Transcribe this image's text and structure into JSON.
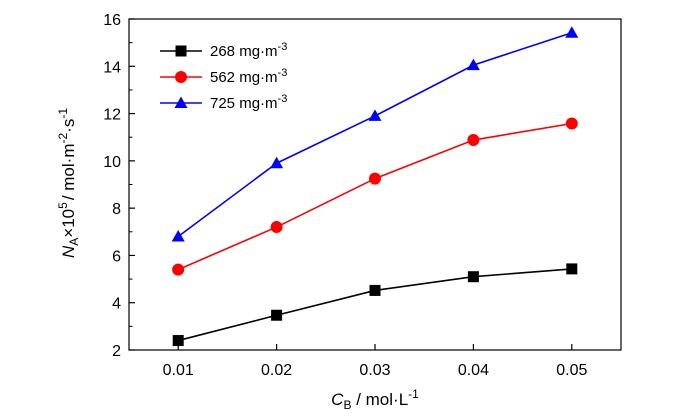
{
  "chart_data": {
    "type": "line",
    "title": "",
    "x": [
      0.01,
      0.02,
      0.03,
      0.04,
      0.05
    ],
    "xlim": [
      0.005,
      0.055
    ],
    "ylim": [
      2,
      16
    ],
    "xticks": [
      "0.01",
      "0.02",
      "0.03",
      "0.04",
      "0.05"
    ],
    "yticks": [
      "2",
      "4",
      "6",
      "8",
      "10",
      "12",
      "14",
      "16"
    ],
    "xlabel": {
      "italic": "C",
      "sub": "B",
      "rest": " / mol·L",
      "sup": "-1"
    },
    "ylabel": {
      "italic": "N",
      "sub": "A",
      "mid": "×10",
      "sup1": "5",
      "rest1": "/ mol·m",
      "sup2": "-2",
      "rest2": "·s",
      "sup3": "-1"
    },
    "grid": false,
    "legend_position": "top-left",
    "series": [
      {
        "name": "268 mg·m",
        "name_sup": "-3",
        "marker": "square",
        "color": "#000000",
        "values": [
          2.4,
          3.47,
          4.52,
          5.1,
          5.43
        ]
      },
      {
        "name": "562 mg·m",
        "name_sup": "-3",
        "marker": "circle",
        "color": "#ff0000",
        "values": [
          5.4,
          7.2,
          9.25,
          10.88,
          11.58
        ]
      },
      {
        "name": "725 mg·m",
        "name_sup": "-3",
        "marker": "triangle",
        "color": "#0000ff",
        "values": [
          6.8,
          9.9,
          11.9,
          14.05,
          15.42
        ]
      }
    ]
  }
}
